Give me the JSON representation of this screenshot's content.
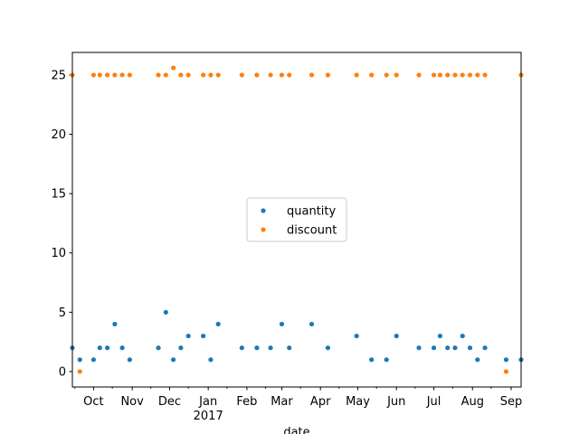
{
  "chart_data": {
    "type": "scatter",
    "xlabel": "date",
    "ylabel": "",
    "x_axis": "date",
    "xlim": [
      "2016-09-14",
      "2017-09-09"
    ],
    "ylim": [
      -1.3,
      26.9
    ],
    "y_ticks": [
      0,
      5,
      10,
      15,
      20,
      25
    ],
    "x_ticks": [
      {
        "date": "2016-10-01",
        "label": "Oct",
        "sublabel": ""
      },
      {
        "date": "2016-11-01",
        "label": "Nov",
        "sublabel": ""
      },
      {
        "date": "2016-12-01",
        "label": "Dec",
        "sublabel": ""
      },
      {
        "date": "2017-01-01",
        "label": "Jan",
        "sublabel": "2017"
      },
      {
        "date": "2017-02-01",
        "label": "Feb",
        "sublabel": ""
      },
      {
        "date": "2017-03-01",
        "label": "Mar",
        "sublabel": ""
      },
      {
        "date": "2017-04-01",
        "label": "Apr",
        "sublabel": ""
      },
      {
        "date": "2017-05-01",
        "label": "May",
        "sublabel": ""
      },
      {
        "date": "2017-06-01",
        "label": "Jun",
        "sublabel": ""
      },
      {
        "date": "2017-07-01",
        "label": "Jul",
        "sublabel": ""
      },
      {
        "date": "2017-08-01",
        "label": "Aug",
        "sublabel": ""
      },
      {
        "date": "2017-09-01",
        "label": "Sep",
        "sublabel": ""
      }
    ],
    "legend_position": "center",
    "grid": false,
    "series": [
      {
        "name": "quantity",
        "color": "#1f77b4",
        "points": [
          [
            "2016-09-14",
            2
          ],
          [
            "2016-09-20",
            1
          ],
          [
            "2016-10-01",
            1
          ],
          [
            "2016-10-06",
            2
          ],
          [
            "2016-10-12",
            2
          ],
          [
            "2016-10-18",
            4
          ],
          [
            "2016-10-24",
            2
          ],
          [
            "2016-10-30",
            1
          ],
          [
            "2016-11-22",
            2
          ],
          [
            "2016-11-28",
            5
          ],
          [
            "2016-12-04",
            1
          ],
          [
            "2016-12-10",
            2
          ],
          [
            "2016-12-16",
            3
          ],
          [
            "2016-12-28",
            3
          ],
          [
            "2017-01-03",
            1
          ],
          [
            "2017-01-09",
            4
          ],
          [
            "2017-01-28",
            2
          ],
          [
            "2017-02-09",
            2
          ],
          [
            "2017-02-20",
            2
          ],
          [
            "2017-03-01",
            4
          ],
          [
            "2017-03-07",
            2
          ],
          [
            "2017-03-25",
            4
          ],
          [
            "2017-04-07",
            2
          ],
          [
            "2017-04-30",
            3
          ],
          [
            "2017-05-12",
            1
          ],
          [
            "2017-05-24",
            1
          ],
          [
            "2017-06-01",
            3
          ],
          [
            "2017-06-19",
            2
          ],
          [
            "2017-07-01",
            2
          ],
          [
            "2017-07-06",
            3
          ],
          [
            "2017-07-12",
            2
          ],
          [
            "2017-07-18",
            2
          ],
          [
            "2017-07-24",
            3
          ],
          [
            "2017-07-30",
            2
          ],
          [
            "2017-08-05",
            1
          ],
          [
            "2017-08-11",
            2
          ],
          [
            "2017-08-28",
            1
          ],
          [
            "2017-09-09",
            1
          ]
        ]
      },
      {
        "name": "discount",
        "color": "#ff7f0e",
        "points": [
          [
            "2016-09-14",
            25
          ],
          [
            "2016-09-20",
            0
          ],
          [
            "2016-10-01",
            25
          ],
          [
            "2016-10-06",
            25
          ],
          [
            "2016-10-12",
            25
          ],
          [
            "2016-10-18",
            25
          ],
          [
            "2016-10-24",
            25
          ],
          [
            "2016-10-30",
            25
          ],
          [
            "2016-11-22",
            25
          ],
          [
            "2016-11-28",
            25
          ],
          [
            "2016-12-04",
            25.6
          ],
          [
            "2016-12-10",
            25
          ],
          [
            "2016-12-16",
            25
          ],
          [
            "2016-12-28",
            25
          ],
          [
            "2017-01-03",
            25
          ],
          [
            "2017-01-09",
            25
          ],
          [
            "2017-01-28",
            25
          ],
          [
            "2017-02-09",
            25
          ],
          [
            "2017-02-20",
            25
          ],
          [
            "2017-03-01",
            25
          ],
          [
            "2017-03-07",
            25
          ],
          [
            "2017-03-25",
            25
          ],
          [
            "2017-04-07",
            25
          ],
          [
            "2017-04-30",
            25
          ],
          [
            "2017-05-12",
            25
          ],
          [
            "2017-05-24",
            25
          ],
          [
            "2017-06-01",
            25
          ],
          [
            "2017-06-19",
            25
          ],
          [
            "2017-07-01",
            25
          ],
          [
            "2017-07-06",
            25
          ],
          [
            "2017-07-12",
            25
          ],
          [
            "2017-07-18",
            25
          ],
          [
            "2017-07-24",
            25
          ],
          [
            "2017-07-30",
            25
          ],
          [
            "2017-08-05",
            25
          ],
          [
            "2017-08-11",
            25
          ],
          [
            "2017-08-28",
            0
          ],
          [
            "2017-09-09",
            25
          ]
        ]
      }
    ]
  }
}
